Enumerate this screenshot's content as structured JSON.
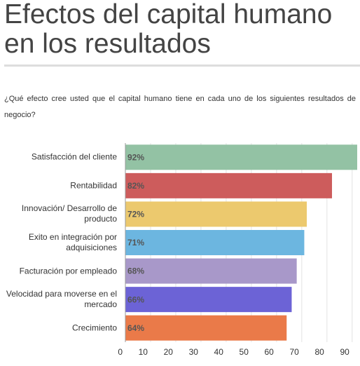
{
  "chart_data": {
    "type": "bar",
    "orientation": "horizontal",
    "title": "Efectos del capital humano en los resultados",
    "subtitle": "¿Qué efecto cree usted que el capital humano tiene en cada uno de los siguientes resultados de negocio?",
    "categories": [
      "Satisfacción del cliente",
      "Rentabilidad",
      "Innovación/ Desarrollo de producto",
      "Exito en integración por adquisiciones",
      "Facturación por empleado",
      "Velocidad para moverse en el mercado",
      "Crecimiento"
    ],
    "values": [
      92,
      82,
      72,
      71,
      68,
      66,
      64
    ],
    "value_labels": [
      "92%",
      "82%",
      "72%",
      "71%",
      "68%",
      "66%",
      "64%"
    ],
    "colors": [
      "#93c2a4",
      "#cd5c5c",
      "#ecc96e",
      "#6cb6e0",
      "#a898c9",
      "#6c63d6",
      "#ea7a49"
    ],
    "xlim": [
      0,
      92
    ],
    "xticks": [
      0,
      10,
      20,
      30,
      40,
      50,
      60,
      70,
      80,
      90
    ],
    "grid": true
  }
}
